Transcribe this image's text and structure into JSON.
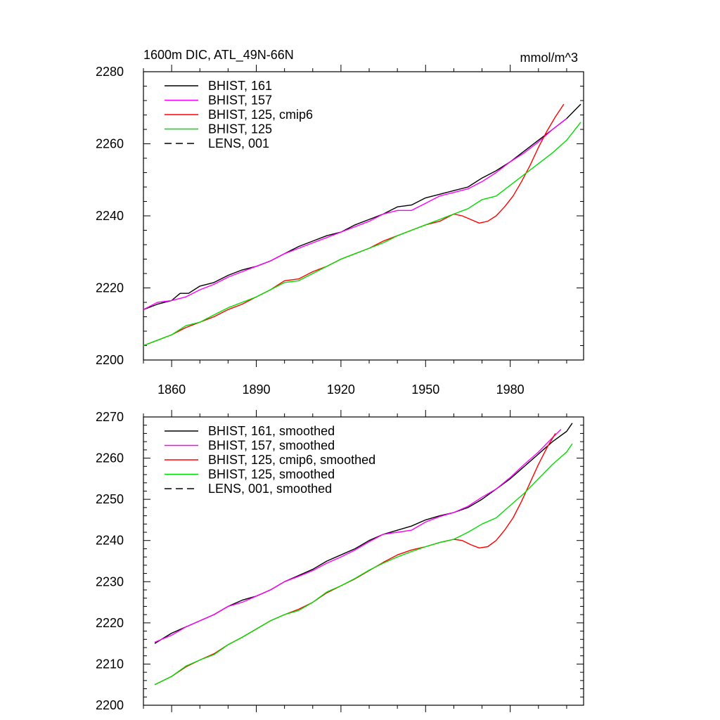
{
  "chart_data": [
    {
      "type": "line",
      "title_left": "1600m DIC, ATL_49N-66N",
      "title_right": "mmol/m^3",
      "xlabel": "",
      "ylabel": "",
      "xlim": [
        1850,
        2006
      ],
      "ylim": [
        2200,
        2280
      ],
      "x_ticks": [
        1860,
        1890,
        1920,
        1950,
        1980
      ],
      "y_ticks": [
        2200,
        2220,
        2240,
        2260,
        2280
      ],
      "grid": false,
      "legend_position": "top-left",
      "series": [
        {
          "name": "BHIST, 161",
          "color": "#000000",
          "dash": "solid",
          "x": [
            1850,
            1855,
            1860,
            1863,
            1866,
            1870,
            1875,
            1880,
            1885,
            1890,
            1895,
            1900,
            1905,
            1910,
            1915,
            1920,
            1925,
            1930,
            1935,
            1940,
            1945,
            1950,
            1955,
            1960,
            1965,
            1970,
            1975,
            1980,
            1985,
            1990,
            1995,
            2000,
            2005
          ],
          "y": [
            2214,
            2215.5,
            2216.5,
            2218.5,
            2218.5,
            2220.5,
            2221.5,
            2223.5,
            2225,
            2226,
            2227.5,
            2229.5,
            2231.5,
            2233,
            2234.5,
            2235.5,
            2237.5,
            2239,
            2240.5,
            2242.5,
            2243,
            2245,
            2246,
            2247,
            2248,
            2250.5,
            2252.5,
            2255,
            2258,
            2261,
            2264,
            2267,
            2271
          ]
        },
        {
          "name": "BHIST, 157",
          "color": "#ff00ff",
          "dash": "solid",
          "x": [
            1850,
            1855,
            1860,
            1865,
            1870,
            1875,
            1880,
            1885,
            1890,
            1895,
            1900,
            1905,
            1910,
            1915,
            1920,
            1925,
            1930,
            1935,
            1940,
            1945,
            1950,
            1955,
            1960,
            1965,
            1970,
            1975,
            1980,
            1985,
            1990,
            1995,
            2000
          ],
          "y": [
            2214,
            2216,
            2216.5,
            2217.5,
            2219.5,
            2221,
            2223,
            2224.5,
            2226,
            2227.5,
            2229.5,
            2231,
            2232.5,
            2234,
            2235.5,
            2237,
            2238.5,
            2240.5,
            2241.5,
            2241.5,
            2243.5,
            2245.5,
            2246.5,
            2247.5,
            2249.5,
            2252,
            2255,
            2257.5,
            2260.5,
            2264,
            2267
          ]
        },
        {
          "name": "BHIST, 125, cmip6",
          "color": "#ff0000",
          "dash": "solid",
          "x": [
            1850,
            1855,
            1860,
            1865,
            1870,
            1875,
            1880,
            1885,
            1890,
            1895,
            1900,
            1905,
            1910,
            1915,
            1920,
            1925,
            1930,
            1935,
            1940,
            1945,
            1950,
            1955,
            1960,
            1963,
            1966,
            1969,
            1972,
            1975,
            1978,
            1981,
            1984,
            1987,
            1990,
            1993,
            1996,
            1999
          ],
          "y": [
            2204,
            2205.5,
            2207,
            2209,
            2210.5,
            2212,
            2214,
            2215.5,
            2217.5,
            2219.5,
            2222,
            2222.5,
            2224.5,
            2226,
            2228,
            2229.5,
            2231,
            2233,
            2234.5,
            2236,
            2237.5,
            2238.5,
            2240.5,
            2240,
            2239,
            2238,
            2238.5,
            2240,
            2242.5,
            2245.5,
            2249.5,
            2254,
            2259,
            2263.5,
            2267.5,
            2271
          ]
        },
        {
          "name": "BHIST, 125",
          "color": "#00dd00",
          "dash": "solid",
          "x": [
            1850,
            1855,
            1860,
            1865,
            1870,
            1875,
            1880,
            1885,
            1890,
            1895,
            1900,
            1905,
            1910,
            1915,
            1920,
            1925,
            1930,
            1935,
            1940,
            1945,
            1950,
            1955,
            1960,
            1965,
            1970,
            1975,
            1980,
            1985,
            1990,
            1995,
            2000,
            2005
          ],
          "y": [
            2204,
            2205.5,
            2207,
            2209.5,
            2210.5,
            2212.5,
            2214.5,
            2216,
            2217.5,
            2219.5,
            2221.5,
            2222,
            2224,
            2226,
            2228,
            2229.5,
            2231,
            2232.5,
            2234.5,
            2236,
            2237.5,
            2239,
            2240.5,
            2242,
            2244.5,
            2245.5,
            2248.5,
            2251.5,
            2254.5,
            2257.5,
            2261,
            2266
          ]
        },
        {
          "name": "LENS, 001",
          "color": "#000000",
          "dash": "dashed",
          "x": [],
          "y": []
        }
      ]
    },
    {
      "type": "line",
      "title_left": "",
      "title_right": "",
      "xlabel": "",
      "ylabel": "",
      "xlim": [
        1850,
        2006
      ],
      "ylim": [
        2200,
        2270
      ],
      "x_ticks": [
        1860,
        1890,
        1920,
        1950,
        1980
      ],
      "y_ticks": [
        2200,
        2210,
        2220,
        2230,
        2240,
        2250,
        2260,
        2270
      ],
      "show_x_tick_labels": false,
      "grid": false,
      "legend_position": "top-left",
      "series": [
        {
          "name": "BHIST, 161, smoothed",
          "color": "#000000",
          "dash": "solid",
          "x": [
            1854,
            1860,
            1865,
            1870,
            1875,
            1880,
            1885,
            1890,
            1895,
            1900,
            1905,
            1910,
            1915,
            1920,
            1925,
            1930,
            1935,
            1940,
            1945,
            1950,
            1955,
            1960,
            1965,
            1970,
            1975,
            1980,
            1985,
            1990,
            1995,
            2000,
            2002
          ],
          "y": [
            2215,
            2217.5,
            2219,
            2220.5,
            2222,
            2224,
            2225.5,
            2226.5,
            2228,
            2230,
            2231.5,
            2233,
            2235,
            2236.5,
            2238,
            2240,
            2241.5,
            2242.5,
            2243.5,
            2245,
            2246,
            2246.8,
            2248,
            2250,
            2252.5,
            2255,
            2258,
            2261,
            2264,
            2266.5,
            2268.5
          ]
        },
        {
          "name": "BHIST, 157, smoothed",
          "color": "#ff00ff",
          "dash": "solid",
          "x": [
            1854,
            1860,
            1865,
            1870,
            1875,
            1880,
            1885,
            1890,
            1895,
            1900,
            1905,
            1910,
            1915,
            1920,
            1925,
            1930,
            1935,
            1940,
            1945,
            1950,
            1955,
            1960,
            1965,
            1970,
            1975,
            1980,
            1985,
            1990,
            1995,
            1998
          ],
          "y": [
            2215.3,
            2217,
            2219,
            2220.5,
            2222,
            2224,
            2225,
            2226.5,
            2228,
            2230,
            2231.3,
            2232.7,
            2234.5,
            2236,
            2237.7,
            2239.7,
            2241.5,
            2242,
            2242.5,
            2244.5,
            2245.8,
            2246.8,
            2248.3,
            2250.5,
            2252.5,
            2255.3,
            2258.5,
            2261.5,
            2265,
            2267
          ]
        },
        {
          "name": "BHIST, 125, cmip6, smoothed",
          "color": "#ff0000",
          "dash": "solid",
          "x": [
            1854,
            1860,
            1865,
            1870,
            1875,
            1880,
            1885,
            1890,
            1895,
            1900,
            1905,
            1910,
            1915,
            1920,
            1925,
            1930,
            1935,
            1940,
            1945,
            1950,
            1955,
            1960,
            1963,
            1966,
            1969,
            1972,
            1975,
            1978,
            1981,
            1984,
            1987,
            1990,
            1993,
            1996
          ],
          "y": [
            2205,
            2207,
            2209.3,
            2211,
            2212.5,
            2214.7,
            2216.5,
            2218.5,
            2220.5,
            2222,
            2223.3,
            2225,
            2227.3,
            2229,
            2230.7,
            2232.7,
            2234.7,
            2236.5,
            2237.7,
            2238.5,
            2239.5,
            2240.3,
            2240,
            2239,
            2238.2,
            2238.5,
            2240,
            2242.5,
            2245.5,
            2249.5,
            2254,
            2258.5,
            2262.5,
            2266
          ]
        },
        {
          "name": "BHIST, 125, smoothed",
          "color": "#00dd00",
          "dash": "solid",
          "x": [
            1854,
            1860,
            1865,
            1870,
            1875,
            1880,
            1885,
            1890,
            1895,
            1900,
            1905,
            1910,
            1915,
            1920,
            1925,
            1930,
            1935,
            1940,
            1945,
            1950,
            1955,
            1960,
            1965,
            1970,
            1975,
            1980,
            1985,
            1990,
            1995,
            2000,
            2002
          ],
          "y": [
            2205,
            2207,
            2209.5,
            2211,
            2212.3,
            2214.7,
            2216.5,
            2218.5,
            2220.5,
            2222,
            2223,
            2225,
            2227.5,
            2229,
            2230.8,
            2232.8,
            2234.5,
            2236,
            2237.3,
            2238.5,
            2239.5,
            2240.3,
            2242,
            2244,
            2245.5,
            2248.5,
            2251.5,
            2255,
            2258.5,
            2261.5,
            2263.5
          ]
        },
        {
          "name": "LENS, 001, smoothed",
          "color": "#000000",
          "dash": "dashed",
          "x": [],
          "y": []
        }
      ]
    }
  ]
}
